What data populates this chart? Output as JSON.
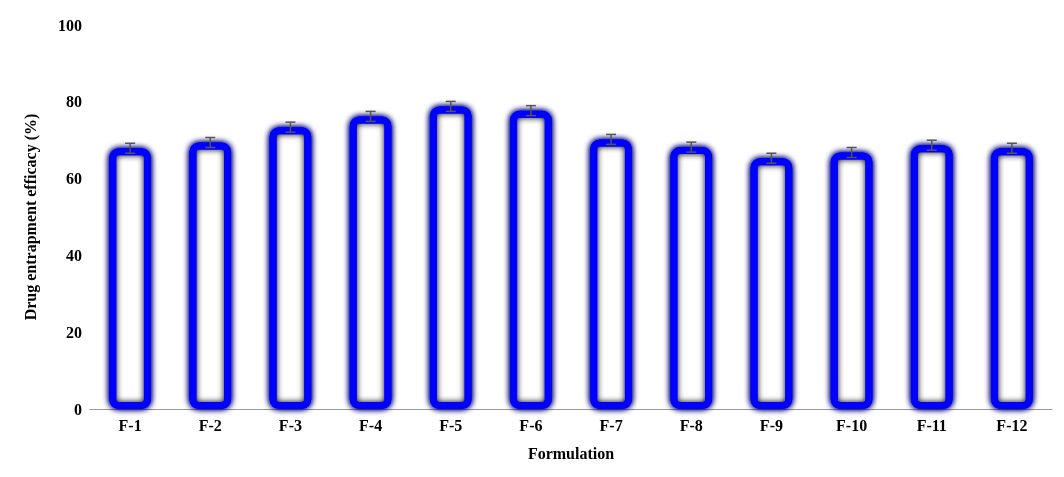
{
  "chart_data": {
    "type": "bar",
    "xlabel": "Formulation",
    "ylabel": "Drug entrapment efficacy (%)",
    "categories": [
      "F-1",
      "F-2",
      "F-3",
      "F-4",
      "F-5",
      "F-6",
      "F-7",
      "F-8",
      "F-9",
      "F-10",
      "F-11",
      "F-12"
    ],
    "values": [
      67.9,
      69.4,
      73.4,
      76.2,
      78.8,
      77.7,
      70.2,
      68.2,
      65.3,
      66.8,
      68.7,
      67.9
    ],
    "errors": [
      1.3,
      1.3,
      1.3,
      1.3,
      1.3,
      1.3,
      1.3,
      1.3,
      1.3,
      1.3,
      1.3,
      1.3
    ],
    "color": "#0000ff",
    "ylim": [
      0,
      100
    ],
    "yticks": [
      0,
      20,
      40,
      60,
      80,
      100
    ],
    "grid": false
  }
}
